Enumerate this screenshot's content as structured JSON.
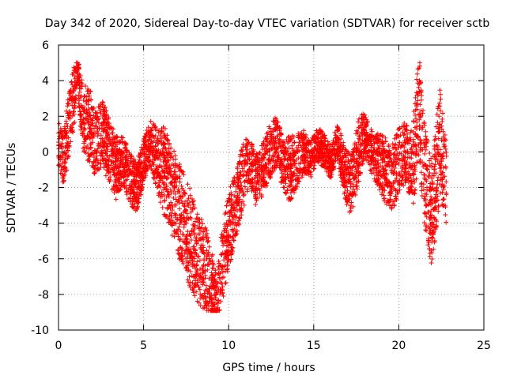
{
  "chart_data": {
    "type": "scatter",
    "title": "Day 342 of 2020, Sidereal Day-to-day VTEC variation (SDTVAR) for receiver sctb",
    "xlabel": "GPS time / hours",
    "ylabel": "SDTVAR / TECUs",
    "xlim": [
      0,
      25
    ],
    "ylim": [
      -10,
      6
    ],
    "xticks": [
      0,
      5,
      10,
      15,
      20,
      25
    ],
    "yticks": [
      -10,
      -8,
      -6,
      -4,
      -2,
      0,
      2,
      4,
      6
    ],
    "grid": true,
    "marker": "+",
    "color": "#ff0000",
    "series": [
      {
        "name": "SDTVAR",
        "approx_trend": {
          "x": [
            0.0,
            0.3,
            0.6,
            0.9,
            1.1,
            1.4,
            1.8,
            2.2,
            2.6,
            3.0,
            3.4,
            3.8,
            4.2,
            4.6,
            5.0,
            5.4,
            5.8,
            6.2,
            6.6,
            7.0,
            7.4,
            7.8,
            8.2,
            8.6,
            9.0,
            9.3,
            9.6,
            10.0,
            10.4,
            10.8,
            11.2,
            11.6,
            12.0,
            12.4,
            12.8,
            13.2,
            13.6,
            14.0,
            14.4,
            14.8,
            15.2,
            15.6,
            16.0,
            16.4,
            16.8,
            17.2,
            17.6,
            18.0,
            18.4,
            18.8,
            19.2,
            19.6,
            20.0,
            20.4,
            20.8,
            21.2,
            21.6,
            22.0,
            22.4,
            22.8
          ],
          "y": [
            0.5,
            -0.5,
            1.5,
            3.0,
            4.5,
            2.0,
            1.5,
            0.5,
            1.0,
            0.0,
            -1.0,
            -0.5,
            -1.5,
            -2.0,
            -0.5,
            0.5,
            -0.5,
            -1.0,
            -2.0,
            -3.0,
            -4.0,
            -5.0,
            -6.0,
            -6.5,
            -7.5,
            -8.5,
            -6.5,
            -4.5,
            -3.0,
            -1.5,
            -0.5,
            -1.5,
            -1.0,
            0.0,
            0.5,
            -0.5,
            -1.0,
            -0.5,
            0.0,
            -0.5,
            0.5,
            0.0,
            -0.5,
            0.5,
            -1.0,
            -2.0,
            0.0,
            1.0,
            0.0,
            -0.5,
            -1.0,
            -1.5,
            -0.5,
            0.0,
            -1.0,
            2.5,
            -2.0,
            -3.5,
            0.5,
            -2.0
          ],
          "spread": [
            1.0,
            1.2,
            1.5,
            1.5,
            0.8,
            1.5,
            1.8,
            1.5,
            1.5,
            1.5,
            1.5,
            1.2,
            1.2,
            1.2,
            1.0,
            1.0,
            1.5,
            2.0,
            2.0,
            2.2,
            2.2,
            2.2,
            2.0,
            2.0,
            1.8,
            1.2,
            1.8,
            1.8,
            1.5,
            1.5,
            1.2,
            1.2,
            1.2,
            1.2,
            1.2,
            1.2,
            1.5,
            1.2,
            1.0,
            0.8,
            0.8,
            0.8,
            0.8,
            0.8,
            1.2,
            1.5,
            1.5,
            1.0,
            1.0,
            1.2,
            1.5,
            1.5,
            1.5,
            1.5,
            2.0,
            2.5,
            2.5,
            2.5,
            2.5,
            2.0
          ]
        },
        "point_count": 4500
      }
    ]
  }
}
